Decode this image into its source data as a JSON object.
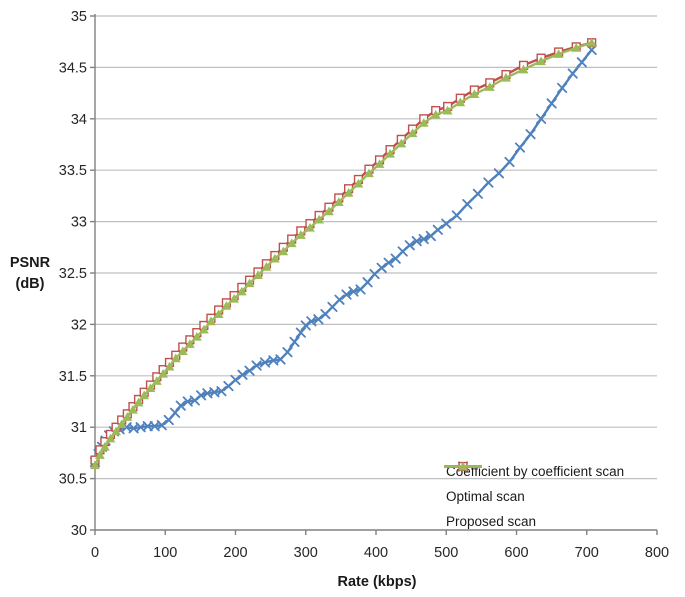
{
  "chart_data": {
    "type": "line",
    "title": "",
    "xlabel": "Rate (kbps)",
    "ylabel": "PSNR (dB)",
    "ylabel_lines": [
      "PSNR",
      "(dB)"
    ],
    "xlim": [
      0,
      800
    ],
    "ylim": [
      30,
      35
    ],
    "x_ticks": {
      "values": [
        0,
        100,
        200,
        300,
        400,
        500,
        600,
        700,
        800
      ],
      "labels": [
        "0",
        "100",
        "200",
        "300",
        "400",
        "500",
        "600",
        "700",
        "800"
      ]
    },
    "y_ticks": {
      "values": [
        30,
        30.5,
        31,
        31.5,
        32,
        32.5,
        33,
        33.5,
        34,
        34.5,
        35
      ],
      "labels": [
        "30",
        "30.5",
        "31",
        "31.5",
        "32",
        "32.5",
        "33",
        "33.5",
        "34",
        "34.5",
        "35"
      ]
    },
    "grid": "horizontal-only",
    "legend_position": "inside-bottom-right",
    "colors": {
      "axis": "#808080",
      "gridline": "#BFBFBF",
      "text": "#262626",
      "blue": "#4F81BD",
      "red": "#C0504D",
      "green": "#9BBB59"
    },
    "series": [
      {
        "name": "Coefficient by coefficient scan",
        "color": "#4F81BD",
        "marker": "x",
        "points": [
          [
            0,
            30.66
          ],
          [
            5,
            30.74
          ],
          [
            10,
            30.81
          ],
          [
            15,
            30.87
          ],
          [
            20,
            30.92
          ],
          [
            27,
            30.96
          ],
          [
            35,
            30.98
          ],
          [
            45,
            31.0
          ],
          [
            55,
            30.99
          ],
          [
            65,
            31.0
          ],
          [
            75,
            31.01
          ],
          [
            85,
            31.01
          ],
          [
            95,
            31.02
          ],
          [
            105,
            31.07
          ],
          [
            114,
            31.14
          ],
          [
            122,
            31.21
          ],
          [
            132,
            31.25
          ],
          [
            142,
            31.26
          ],
          [
            151,
            31.31
          ],
          [
            160,
            31.33
          ],
          [
            170,
            31.34
          ],
          [
            180,
            31.35
          ],
          [
            190,
            31.4
          ],
          [
            200,
            31.46
          ],
          [
            210,
            31.51
          ],
          [
            220,
            31.55
          ],
          [
            230,
            31.6
          ],
          [
            242,
            31.63
          ],
          [
            254,
            31.65
          ],
          [
            264,
            31.66
          ],
          [
            274,
            31.73
          ],
          [
            284,
            31.83
          ],
          [
            293,
            31.92
          ],
          [
            300,
            31.99
          ],
          [
            308,
            32.03
          ],
          [
            318,
            32.05
          ],
          [
            328,
            32.1
          ],
          [
            338,
            32.17
          ],
          [
            348,
            32.24
          ],
          [
            358,
            32.29
          ],
          [
            368,
            32.32
          ],
          [
            378,
            32.34
          ],
          [
            388,
            32.41
          ],
          [
            398,
            32.49
          ],
          [
            408,
            32.55
          ],
          [
            418,
            32.6
          ],
          [
            428,
            32.64
          ],
          [
            438,
            32.71
          ],
          [
            448,
            32.77
          ],
          [
            458,
            32.81
          ],
          [
            468,
            32.83
          ],
          [
            478,
            32.86
          ],
          [
            488,
            32.92
          ],
          [
            500,
            32.98
          ],
          [
            515,
            33.06
          ],
          [
            530,
            33.17
          ],
          [
            545,
            33.27
          ],
          [
            560,
            33.38
          ],
          [
            575,
            33.47
          ],
          [
            590,
            33.58
          ],
          [
            605,
            33.72
          ],
          [
            620,
            33.85
          ],
          [
            635,
            34.0
          ],
          [
            650,
            34.15
          ],
          [
            665,
            34.3
          ],
          [
            680,
            34.44
          ],
          [
            693,
            34.55
          ],
          [
            707,
            34.67
          ]
        ]
      },
      {
        "name": "Optimal scan",
        "color": "#C0504D",
        "marker": "square-open",
        "points": [
          [
            0,
            30.68
          ],
          [
            7,
            30.78
          ],
          [
            14,
            30.86
          ],
          [
            22,
            30.93
          ],
          [
            30,
            31.0
          ],
          [
            38,
            31.07
          ],
          [
            46,
            31.13
          ],
          [
            54,
            31.2
          ],
          [
            62,
            31.27
          ],
          [
            70,
            31.34
          ],
          [
            79,
            31.41
          ],
          [
            88,
            31.49
          ],
          [
            97,
            31.56
          ],
          [
            106,
            31.63
          ],
          [
            115,
            31.7
          ],
          [
            125,
            31.78
          ],
          [
            135,
            31.85
          ],
          [
            145,
            31.92
          ],
          [
            155,
            31.99
          ],
          [
            165,
            32.06
          ],
          [
            176,
            32.14
          ],
          [
            187,
            32.21
          ],
          [
            198,
            32.28
          ],
          [
            209,
            32.36
          ],
          [
            220,
            32.43
          ],
          [
            232,
            32.51
          ],
          [
            244,
            32.59
          ],
          [
            256,
            32.67
          ],
          [
            268,
            32.75
          ],
          [
            280,
            32.83
          ],
          [
            293,
            32.91
          ],
          [
            306,
            32.98
          ],
          [
            319,
            33.06
          ],
          [
            333,
            33.14
          ],
          [
            347,
            33.23
          ],
          [
            361,
            33.32
          ],
          [
            375,
            33.41
          ],
          [
            390,
            33.51
          ],
          [
            405,
            33.6
          ],
          [
            420,
            33.7
          ],
          [
            436,
            33.8
          ],
          [
            452,
            33.9
          ],
          [
            468,
            34.0
          ],
          [
            485,
            34.08
          ],
          [
            502,
            34.12
          ],
          [
            520,
            34.2
          ],
          [
            540,
            34.28
          ],
          [
            562,
            34.35
          ],
          [
            585,
            34.43
          ],
          [
            610,
            34.52
          ],
          [
            635,
            34.59
          ],
          [
            660,
            34.65
          ],
          [
            685,
            34.7
          ],
          [
            707,
            34.74
          ]
        ]
      },
      {
        "name": "Proposed scan",
        "color": "#9BBB59",
        "marker": "triangle",
        "points": [
          [
            0,
            30.63
          ],
          [
            7,
            30.73
          ],
          [
            14,
            30.81
          ],
          [
            22,
            30.89
          ],
          [
            30,
            30.96
          ],
          [
            38,
            31.03
          ],
          [
            46,
            31.1
          ],
          [
            54,
            31.17
          ],
          [
            62,
            31.24
          ],
          [
            70,
            31.31
          ],
          [
            79,
            31.38
          ],
          [
            88,
            31.45
          ],
          [
            97,
            31.52
          ],
          [
            106,
            31.59
          ],
          [
            115,
            31.67
          ],
          [
            125,
            31.74
          ],
          [
            135,
            31.81
          ],
          [
            145,
            31.88
          ],
          [
            155,
            31.95
          ],
          [
            165,
            32.03
          ],
          [
            176,
            32.1
          ],
          [
            187,
            32.18
          ],
          [
            198,
            32.25
          ],
          [
            209,
            32.32
          ],
          [
            220,
            32.4
          ],
          [
            232,
            32.48
          ],
          [
            244,
            32.56
          ],
          [
            256,
            32.64
          ],
          [
            268,
            32.71
          ],
          [
            280,
            32.79
          ],
          [
            293,
            32.87
          ],
          [
            306,
            32.94
          ],
          [
            319,
            33.02
          ],
          [
            333,
            33.1
          ],
          [
            347,
            33.19
          ],
          [
            361,
            33.28
          ],
          [
            375,
            33.37
          ],
          [
            390,
            33.47
          ],
          [
            405,
            33.56
          ],
          [
            420,
            33.66
          ],
          [
            436,
            33.76
          ],
          [
            452,
            33.86
          ],
          [
            468,
            33.96
          ],
          [
            485,
            34.04
          ],
          [
            502,
            34.08
          ],
          [
            520,
            34.16
          ],
          [
            540,
            34.24
          ],
          [
            562,
            34.31
          ],
          [
            585,
            34.4
          ],
          [
            610,
            34.48
          ],
          [
            635,
            34.56
          ],
          [
            660,
            34.63
          ],
          [
            685,
            34.69
          ],
          [
            707,
            34.74
          ]
        ]
      }
    ]
  }
}
